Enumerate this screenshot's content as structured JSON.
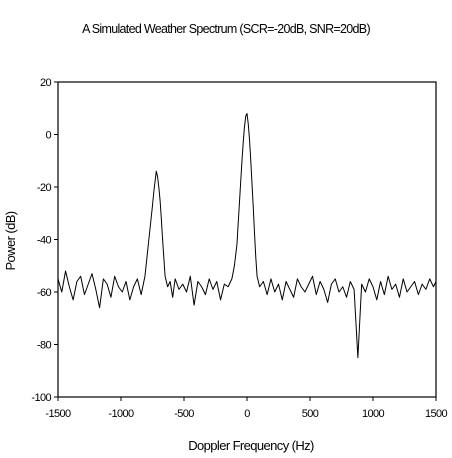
{
  "chart_data": {
    "type": "line",
    "title": "A Simulated Weather Spectrum (SCR=-20dB, SNR=20dB)",
    "xlabel": "Doppler Frequency (Hz)",
    "ylabel": "Power (dB)",
    "xlim": [
      -1500,
      1500
    ],
    "ylim": [
      -100,
      20
    ],
    "xticks": [
      -1500,
      -1000,
      -500,
      0,
      500,
      1000,
      1500
    ],
    "yticks": [
      20,
      0,
      -20,
      -40,
      -60,
      -80,
      -100
    ],
    "xtick_labels": [
      "-1500",
      "-1000",
      "-500",
      "0",
      "500",
      "1000",
      "1500"
    ],
    "ytick_labels": [
      "20",
      "0",
      "-20",
      "-40",
      "-60",
      "-80",
      "-100"
    ],
    "grid": false,
    "legend": "none",
    "line_color": "#000000",
    "series": [
      {
        "x": [
          -1500,
          -1470,
          -1440,
          -1410,
          -1380,
          -1350,
          -1320,
          -1290,
          -1260,
          -1230,
          -1200,
          -1170,
          -1140,
          -1110,
          -1080,
          -1050,
          -1020,
          -990,
          -960,
          -930,
          -900,
          -870,
          -840,
          -810,
          -790,
          -770,
          -750,
          -740,
          -730,
          -720,
          -710,
          -700,
          -690,
          -680,
          -670,
          -660,
          -650,
          -630,
          -610,
          -590,
          -570,
          -540,
          -510,
          -480,
          -450,
          -420,
          -390,
          -360,
          -330,
          -300,
          -270,
          -240,
          -210,
          -180,
          -150,
          -120,
          -100,
          -80,
          -70,
          -60,
          -50,
          -40,
          -30,
          -20,
          -10,
          0,
          10,
          20,
          30,
          40,
          50,
          60,
          70,
          80,
          100,
          130,
          160,
          190,
          220,
          250,
          280,
          310,
          340,
          370,
          400,
          430,
          460,
          490,
          520,
          550,
          580,
          610,
          640,
          670,
          700,
          730,
          760,
          790,
          820,
          850,
          880,
          910,
          940,
          970,
          1000,
          1030,
          1060,
          1090,
          1120,
          1150,
          1180,
          1210,
          1240,
          1270,
          1300,
          1330,
          1360,
          1390,
          1420,
          1450,
          1480,
          1500
        ],
        "values": [
          -55,
          -60,
          -52,
          -58,
          -63,
          -56,
          -54,
          -61,
          -57,
          -53,
          -59,
          -66,
          -55,
          -57,
          -62,
          -54,
          -58,
          -60,
          -56,
          -63,
          -58,
          -55,
          -61,
          -54,
          -45,
          -36,
          -27,
          -22,
          -18,
          -14,
          -16,
          -20,
          -25,
          -32,
          -40,
          -47,
          -54,
          -58,
          -56,
          -62,
          -55,
          -59,
          -57,
          -60,
          -54,
          -65,
          -56,
          -58,
          -61,
          -55,
          -59,
          -56,
          -63,
          -57,
          -58,
          -55,
          -50,
          -42,
          -34,
          -26,
          -18,
          -10,
          -3,
          3,
          7,
          8,
          4,
          -2,
          -10,
          -19,
          -28,
          -38,
          -47,
          -54,
          -58,
          -56,
          -61,
          -55,
          -60,
          -57,
          -63,
          -56,
          -59,
          -62,
          -55,
          -58,
          -60,
          -57,
          -54,
          -61,
          -56,
          -59,
          -64,
          -57,
          -55,
          -60,
          -58,
          -62,
          -56,
          -59,
          -85,
          -57,
          -60,
          -55,
          -58,
          -63,
          -56,
          -61,
          -54,
          -59,
          -57,
          -62,
          -55,
          -60,
          -58,
          -56,
          -61,
          -57,
          -59,
          -55,
          -58,
          -56
        ]
      }
    ]
  }
}
